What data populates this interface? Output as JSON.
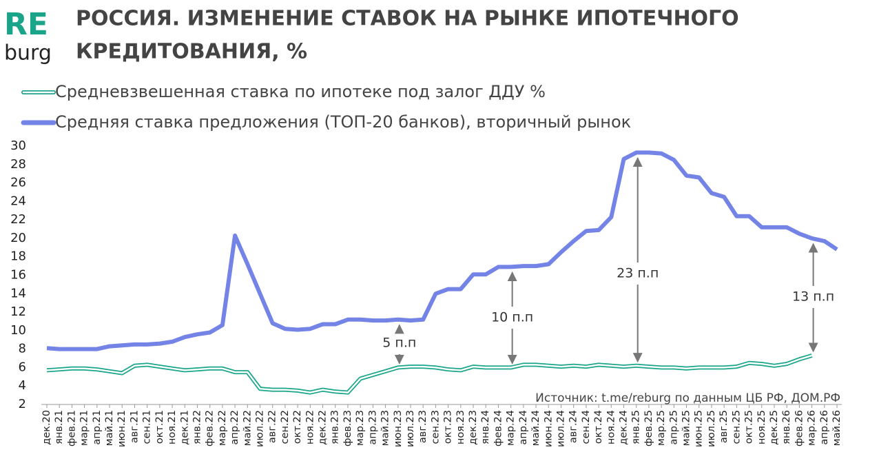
{
  "logo": {
    "top": "RE",
    "bottom": "burg"
  },
  "chart_data": {
    "type": "line",
    "title": [
      "РОССИЯ. ИЗМЕНЕНИЕ СТАВОК НА РЫНКЕ ИПОТЕЧНОГО",
      "КРЕДИТОВАНИЯ, %"
    ],
    "source": "Источник: t.me/reburg по данным ЦБ РФ, ДОМ.РФ",
    "categories": [
      "дек.20",
      "янв.21",
      "фев.21",
      "мар.21",
      "апр.21",
      "май.21",
      "июн.21",
      "авг.21",
      "сен.21",
      "окт.21",
      "ноя.21",
      "дек.21",
      "янв.22",
      "фев.22",
      "мар.22",
      "апр.22",
      "май.22",
      "июл.22",
      "авг.22",
      "сен.22",
      "окт.22",
      "ноя.22",
      "дек.22",
      "янв.23",
      "фев.23",
      "мар.23",
      "апр.23",
      "май.23",
      "июн.23",
      "июл.23",
      "авг.23",
      "сен.23",
      "окт.23",
      "ноя.23",
      "дек.23",
      "янв.24",
      "фев.24",
      "мар.24",
      "апр.24",
      "май.24",
      "июн.24",
      "июл.24",
      "авг.24",
      "сен.24",
      "окт.24",
      "ноя.24",
      "дек.24",
      "янв.25",
      "фев.25",
      "мар.25",
      "апр.25",
      "май.25",
      "июн.25",
      "июл.25",
      "авг.25",
      "сен.25",
      "окт.25",
      "ноя.25",
      "дек.25",
      "янв.26",
      "фев.26",
      "мар.26",
      "апр.26",
      "май.26"
    ],
    "series": [
      {
        "name": "Средневзвешенная ставка по ипотеке под залог ДДУ %",
        "color": "#1aa58a",
        "style": "outline",
        "values": [
          5.7,
          5.8,
          5.9,
          5.9,
          5.8,
          5.6,
          5.4,
          6.2,
          6.3,
          6.1,
          5.9,
          5.7,
          5.8,
          5.9,
          5.9,
          5.5,
          5.5,
          3.7,
          3.6,
          3.6,
          3.5,
          3.3,
          3.6,
          3.4,
          3.3,
          4.8,
          5.2,
          5.6,
          6.0,
          6.1,
          6.1,
          6.0,
          5.8,
          5.7,
          6.1,
          6.0,
          6.0,
          6.0,
          6.3,
          6.3,
          6.2,
          6.1,
          6.2,
          6.1,
          6.3,
          6.2,
          6.1,
          6.2,
          6.1,
          6.0,
          6.0,
          5.9,
          6.0,
          6.0,
          6.0,
          6.1,
          6.5,
          6.4,
          6.2,
          6.4,
          6.9,
          7.3,
          null,
          null
        ]
      },
      {
        "name": "Средняя ставка предложения (ТОП-20 банков), вторичный рынок",
        "color": "#7383e6",
        "style": "solid",
        "values": [
          8.1,
          8.0,
          8.0,
          8.0,
          8.0,
          8.3,
          8.4,
          8.5,
          8.5,
          8.6,
          8.8,
          9.3,
          9.6,
          9.8,
          10.6,
          20.3,
          17.2,
          14.0,
          10.8,
          10.2,
          10.1,
          10.2,
          10.7,
          10.7,
          11.2,
          11.2,
          11.1,
          11.1,
          11.2,
          11.1,
          11.2,
          14.0,
          14.5,
          14.5,
          16.1,
          16.1,
          16.9,
          16.9,
          17.0,
          17.0,
          17.2,
          18.5,
          19.7,
          20.8,
          20.9,
          22.3,
          28.6,
          29.3,
          29.3,
          29.2,
          28.5,
          26.8,
          26.6,
          24.9,
          24.5,
          22.4,
          22.4,
          21.2,
          21.2,
          21.2,
          20.5,
          20.0,
          19.7,
          18.8
        ]
      }
    ],
    "annotations": [
      "5 п.п",
      "10 п.п",
      "23 п.п",
      "13 п.п"
    ],
    "ylim": [
      2,
      30
    ],
    "yticks": [
      2,
      4,
      6,
      8,
      10,
      12,
      14,
      16,
      18,
      20,
      22,
      24,
      26,
      28,
      30
    ]
  }
}
